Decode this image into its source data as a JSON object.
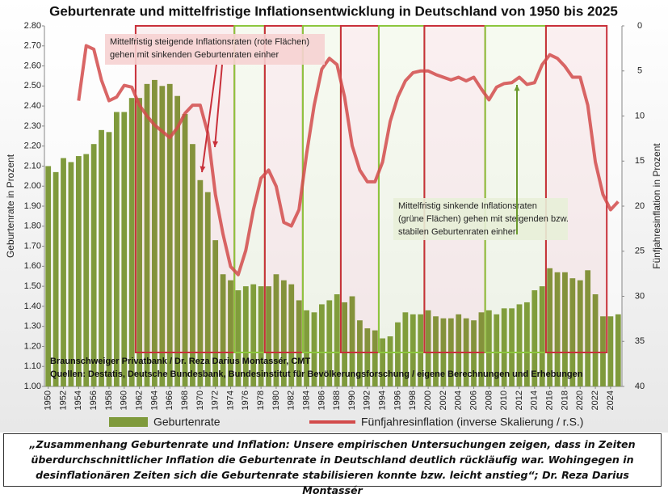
{
  "chart_data": {
    "type": "combo",
    "title": "Geburtenrate und mittelfristige Inflationsentwicklung in Deutschland von 1950 bis 2025",
    "y_label": "Geburtenrate in Prozent",
    "y2_label": "Fünfjahresinflation in Prozent",
    "x": [
      1950,
      1951,
      1952,
      1953,
      1954,
      1955,
      1956,
      1957,
      1958,
      1959,
      1960,
      1961,
      1962,
      1963,
      1964,
      1965,
      1966,
      1967,
      1968,
      1969,
      1970,
      1971,
      1972,
      1973,
      1974,
      1975,
      1976,
      1977,
      1978,
      1979,
      1980,
      1981,
      1982,
      1983,
      1984,
      1985,
      1986,
      1987,
      1988,
      1989,
      1990,
      1991,
      1992,
      1993,
      1994,
      1995,
      1996,
      1997,
      1998,
      1999,
      2000,
      2001,
      2002,
      2003,
      2004,
      2005,
      2006,
      2007,
      2008,
      2009,
      2010,
      2011,
      2012,
      2013,
      2014,
      2015,
      2016,
      2017,
      2018,
      2019,
      2020,
      2021,
      2022,
      2023,
      2024,
      2025
    ],
    "xlim": [
      1949.5,
      2025.5
    ],
    "xticks": [
      1950,
      1952,
      1954,
      1956,
      1958,
      1960,
      1962,
      1964,
      1966,
      1968,
      1970,
      1972,
      1974,
      1976,
      1978,
      1980,
      1982,
      1984,
      1986,
      1988,
      1990,
      1992,
      1994,
      1996,
      1998,
      2000,
      2002,
      2004,
      2006,
      2008,
      2010,
      2012,
      2014,
      2016,
      2018,
      2020,
      2022,
      2024
    ],
    "ylim": [
      1.0,
      2.8
    ],
    "yticks": [
      {
        "value": 1.0,
        "label": "1.00"
      },
      {
        "value": 1.1,
        "label": "1.10"
      },
      {
        "value": 1.2,
        "label": "1.20"
      },
      {
        "value": 1.3,
        "label": "1.30"
      },
      {
        "value": 1.4,
        "label": "1.40"
      },
      {
        "value": 1.5,
        "label": "1.50"
      },
      {
        "value": 1.6,
        "label": "1.60"
      },
      {
        "value": 1.7,
        "label": "1.70"
      },
      {
        "value": 1.8,
        "label": "1.80"
      },
      {
        "value": 1.9,
        "label": "1.90"
      },
      {
        "value": 2.0,
        "label": "2.00"
      },
      {
        "value": 2.1,
        "label": "2.10"
      },
      {
        "value": 2.2,
        "label": "2.20"
      },
      {
        "value": 2.3,
        "label": "2.30"
      },
      {
        "value": 2.4,
        "label": "2.40"
      },
      {
        "value": 2.5,
        "label": "2.50"
      },
      {
        "value": 2.6,
        "label": "2.60"
      },
      {
        "value": 2.7,
        "label": "2.70"
      },
      {
        "value": 2.8,
        "label": "2.80"
      }
    ],
    "y2lim": [
      0,
      40
    ],
    "y2_inverted": true,
    "y2ticks": [
      0,
      5,
      10,
      15,
      20,
      25,
      30,
      35,
      40
    ],
    "series": [
      {
        "name": "Geburtenrate",
        "type": "bar",
        "color": "#7f9a3c",
        "values": [
          2.1,
          2.07,
          2.14,
          2.12,
          2.15,
          2.16,
          2.21,
          2.28,
          2.27,
          2.37,
          2.37,
          2.44,
          2.44,
          2.51,
          2.53,
          2.5,
          2.51,
          2.45,
          2.36,
          2.21,
          2.03,
          1.97,
          1.73,
          1.56,
          1.53,
          1.48,
          1.5,
          1.51,
          1.5,
          1.5,
          1.56,
          1.53,
          1.51,
          1.43,
          1.38,
          1.37,
          1.41,
          1.43,
          1.46,
          1.42,
          1.45,
          1.33,
          1.29,
          1.28,
          1.24,
          1.25,
          1.32,
          1.37,
          1.36,
          1.36,
          1.38,
          1.35,
          1.34,
          1.34,
          1.36,
          1.34,
          1.33,
          1.37,
          1.38,
          1.36,
          1.39,
          1.39,
          1.41,
          1.42,
          1.48,
          1.5,
          1.59,
          1.57,
          1.57,
          1.54,
          1.53,
          1.58,
          1.46,
          1.35,
          1.35,
          1.36
        ]
      },
      {
        "name": "Fünfjahresinflation (inverse Skalierung / r.S.)",
        "type": "line",
        "axis": "y2",
        "color": "#d24b4b",
        "values": [
          null,
          null,
          null,
          null,
          8.3,
          2.2,
          2.6,
          6.0,
          8.3,
          7.9,
          6.6,
          6.8,
          8.8,
          10.0,
          11.0,
          11.7,
          12.4,
          11.3,
          9.7,
          8.8,
          8.8,
          11.9,
          18.7,
          23.1,
          26.7,
          27.6,
          24.9,
          20.4,
          16.9,
          16.0,
          17.8,
          21.8,
          22.2,
          20.4,
          14.2,
          8.8,
          4.8,
          3.6,
          4.3,
          7.9,
          13.3,
          16.0,
          17.3,
          17.3,
          15.1,
          10.6,
          7.9,
          6.1,
          5.2,
          5.0,
          5.0,
          5.4,
          5.7,
          6.0,
          5.7,
          6.1,
          5.7,
          7.0,
          8.2,
          6.8,
          6.4,
          6.3,
          5.7,
          6.5,
          6.3,
          4.3,
          3.2,
          3.6,
          4.5,
          5.7,
          5.7,
          8.8,
          15.1,
          18.7,
          20.4,
          19.5
        ]
      }
    ],
    "periods": [
      {
        "from": 1961.5,
        "to": 1974.5,
        "color": "#c8303a"
      },
      {
        "from": 1974.5,
        "to": 1978.5,
        "color": "#8cc63e"
      },
      {
        "from": 1978.5,
        "to": 1983.5,
        "color": "#c8303a"
      },
      {
        "from": 1983.5,
        "to": 1988.5,
        "color": "#8cc63e"
      },
      {
        "from": 1988.5,
        "to": 1993.5,
        "color": "#c8303a"
      },
      {
        "from": 1993.5,
        "to": 1999.5,
        "color": "#8cc63e"
      },
      {
        "from": 1999.5,
        "to": 2007.5,
        "color": "#c8303a"
      },
      {
        "from": 2007.5,
        "to": 2015.5,
        "color": "#8cc63e"
      },
      {
        "from": 2015.5,
        "to": 2023.5,
        "color": "#c8303a"
      }
    ],
    "annotations": [
      {
        "lines": [
          "Mittelfristig steigende Inflationsraten (rote Flächen)",
          "gehen mit sinkenden Geburtenraten einher"
        ]
      },
      {
        "lines": [
          "Mittelfristig sinkende Inflationsraten",
          "(grüne Flächen) gehen mit steigenden bzw.",
          "stabilen Geburtenraten einher"
        ]
      }
    ],
    "source": [
      "Braunschweiger Privatbank / Dr. Reza Darius Montassér, CMT",
      "Quellen: Destatis, Deutsche Bundesbank, Bundesinstitut für Bevölkerungsforschung / eigene Berechnungen und Erhebungen"
    ]
  },
  "caption": [
    "„Zusammenhang Geburtenrate und Inflation: Unsere empirischen Untersuchungen zeigen, dass in Zeiten",
    "überdurchschnittlicher Inflation die Geburtenrate in Deutschland deutlich rückläufig war. Wohingegen in",
    "desinflationären Zeiten sich die Geburtenrate stabilisieren konnte bzw. leicht anstieg“; Dr. Reza Darius Montassér"
  ]
}
